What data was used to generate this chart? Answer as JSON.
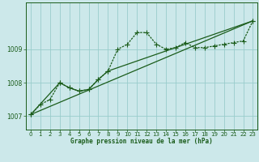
{
  "title": "Graphe pression niveau de la mer (hPa)",
  "bg_color": "#cce8ea",
  "grid_color": "#99cccc",
  "line_color": "#1a5c1a",
  "xlim": [
    -0.5,
    23.5
  ],
  "ylim": [
    1006.6,
    1010.4
  ],
  "xticks": [
    0,
    1,
    2,
    3,
    4,
    5,
    6,
    7,
    8,
    9,
    10,
    11,
    12,
    13,
    14,
    15,
    16,
    17,
    18,
    19,
    20,
    21,
    22,
    23
  ],
  "yticks": [
    1007,
    1008,
    1009
  ],
  "series1_x": [
    0,
    1,
    2,
    3,
    4,
    5,
    6,
    7,
    8,
    9,
    10,
    11,
    12,
    13,
    14,
    15,
    16,
    17,
    18,
    19,
    20,
    21,
    22,
    23
  ],
  "series1_y": [
    1007.05,
    1007.35,
    1007.5,
    1008.0,
    1007.85,
    1007.75,
    1007.8,
    1008.1,
    1008.35,
    1009.0,
    1009.15,
    1009.5,
    1009.5,
    1009.15,
    1009.0,
    1009.05,
    1009.2,
    1009.05,
    1009.05,
    1009.1,
    1009.15,
    1009.2,
    1009.25,
    1009.85
  ],
  "series2_x": [
    0,
    3,
    4,
    5,
    6,
    7,
    8,
    23
  ],
  "series2_y": [
    1007.05,
    1008.0,
    1007.85,
    1007.75,
    1007.8,
    1008.1,
    1008.35,
    1009.85
  ],
  "series3_x": [
    0,
    23
  ],
  "series3_y": [
    1007.05,
    1009.85
  ]
}
